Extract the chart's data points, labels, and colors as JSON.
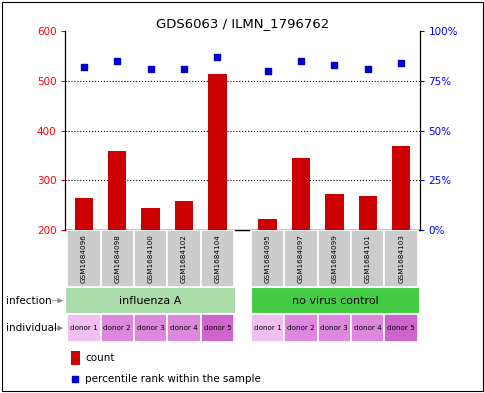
{
  "title": "GDS6063 / ILMN_1796762",
  "samples": [
    "GSM1684096",
    "GSM1684098",
    "GSM1684100",
    "GSM1684102",
    "GSM1684104",
    "GSM1684095",
    "GSM1684097",
    "GSM1684099",
    "GSM1684101",
    "GSM1684103"
  ],
  "counts": [
    265,
    360,
    245,
    258,
    515,
    222,
    345,
    272,
    268,
    370
  ],
  "percentile_ranks": [
    82,
    85,
    81,
    81,
    87,
    80,
    85,
    83,
    81,
    84
  ],
  "ylim_left": [
    200,
    600
  ],
  "ylim_right": [
    0,
    100
  ],
  "yticks_left": [
    200,
    300,
    400,
    500,
    600
  ],
  "yticks_right": [
    0,
    25,
    50,
    75,
    100
  ],
  "ytick_labels_right": [
    "0%",
    "25%",
    "50%",
    "75%",
    "100%"
  ],
  "bar_color": "#cc0000",
  "scatter_color": "#0000cc",
  "infection_groups": [
    {
      "label": "influenza A",
      "start": 0,
      "end": 5,
      "color": "#aaddaa"
    },
    {
      "label": "no virus control",
      "start": 5,
      "end": 10,
      "color": "#44cc44"
    }
  ],
  "individual_labels": [
    "donor 1",
    "donor 2",
    "donor 3",
    "donor 4",
    "donor 5",
    "donor 1",
    "donor 2",
    "donor 3",
    "donor 4",
    "donor 5"
  ],
  "individual_colors": [
    "#f0c0f0",
    "#dd88dd",
    "#dd88dd",
    "#dd88dd",
    "#cc66cc",
    "#f0c0f0",
    "#dd88dd",
    "#dd88dd",
    "#dd88dd",
    "#cc66cc"
  ],
  "sample_box_color": "#cccccc",
  "legend_count_color": "#cc0000",
  "legend_pct_color": "#0000cc",
  "infection_label": "infection",
  "individual_label": "individual",
  "legend_count_text": "count",
  "legend_pct_text": "percentile rank within the sample",
  "x_positions": [
    0,
    1,
    2,
    3,
    4,
    5.5,
    6.5,
    7.5,
    8.5,
    9.5
  ]
}
